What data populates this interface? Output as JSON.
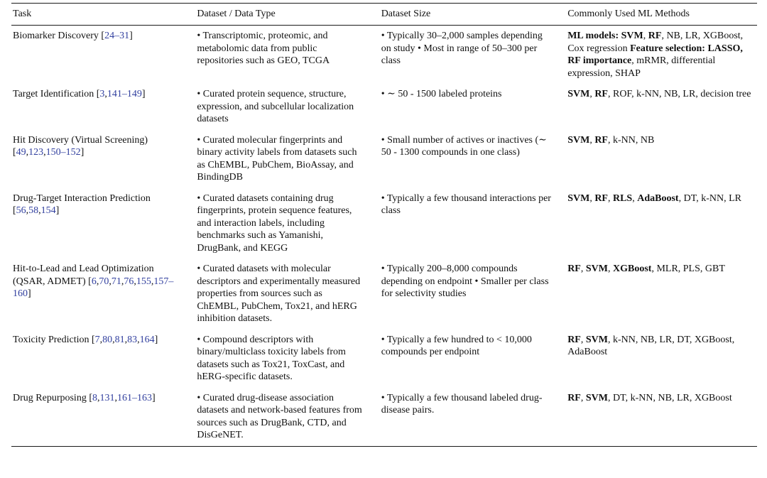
{
  "colors": {
    "citation": "#32409f",
    "text": "#111111",
    "rule": "#1a1a1a",
    "background": "#ffffff"
  },
  "table": {
    "columns": [
      "Task",
      "Dataset / Data Type",
      "Dataset Size",
      "Commonly Used ML Methods"
    ],
    "rows": [
      {
        "task": [
          {
            "t": "Biomarker Discovery ["
          },
          {
            "t": "24–31",
            "cite": true
          },
          {
            "t": "]"
          }
        ],
        "dataset": [
          {
            "t": "• Transcriptomic, proteomic, and metabolomic data from public repositories such as GEO, TCGA"
          }
        ],
        "size": [
          {
            "t": "• Typically 30–2,000 samples depending on study • Most in range of 50–300 per class"
          }
        ],
        "methods": [
          {
            "t": "ML models: ",
            "b": true
          },
          {
            "t": "SVM",
            "b": true
          },
          {
            "t": ", "
          },
          {
            "t": "RF",
            "b": true
          },
          {
            "t": ", NB, LR, XGBoost, Cox regression "
          },
          {
            "t": "Feature selection: ",
            "b": true
          },
          {
            "t": "LASSO, RF importance",
            "b": true
          },
          {
            "t": ", mRMR, differential expression, SHAP"
          }
        ]
      },
      {
        "task": [
          {
            "t": "Target Identification ["
          },
          {
            "t": "3",
            "cite": true
          },
          {
            "t": ","
          },
          {
            "t": "141–149",
            "cite": true
          },
          {
            "t": "]"
          }
        ],
        "dataset": [
          {
            "t": "• Curated protein sequence, structure, expression, and subcellular localization datasets"
          }
        ],
        "size": [
          {
            "t": "• ∼ 50 - 1500 labeled proteins"
          }
        ],
        "methods": [
          {
            "t": "SVM",
            "b": true
          },
          {
            "t": ", "
          },
          {
            "t": "RF",
            "b": true
          },
          {
            "t": ", ROF, k-NN, NB, LR, decision tree"
          }
        ]
      },
      {
        "task": [
          {
            "t": "Hit Discovery (Virtual Screening) ["
          },
          {
            "t": "49",
            "cite": true
          },
          {
            "t": ","
          },
          {
            "t": "123",
            "cite": true
          },
          {
            "t": ","
          },
          {
            "t": "150–152",
            "cite": true
          },
          {
            "t": "]"
          }
        ],
        "dataset": [
          {
            "t": "• Curated molecular fingerprints and binary activity labels from datasets such as ChEMBL, PubChem, BioAssay, and BindingDB"
          }
        ],
        "size": [
          {
            "t": "• Small number of actives or inactives (∼ 50 - 1300 compounds in one class)"
          }
        ],
        "methods": [
          {
            "t": "SVM",
            "b": true
          },
          {
            "t": ", "
          },
          {
            "t": "RF",
            "b": true
          },
          {
            "t": ", k-NN, NB"
          }
        ]
      },
      {
        "task": [
          {
            "t": "Drug-Target Interaction Prediction ["
          },
          {
            "t": "56",
            "cite": true
          },
          {
            "t": ","
          },
          {
            "t": "58",
            "cite": true
          },
          {
            "t": ","
          },
          {
            "t": "154",
            "cite": true
          },
          {
            "t": "]"
          }
        ],
        "dataset": [
          {
            "t": "• Curated datasets containing drug fingerprints, protein sequence features, and interaction labels, including benchmarks such as Yamanishi, DrugBank, and KEGG"
          }
        ],
        "size": [
          {
            "t": "• Typically a few thousand interactions per class"
          }
        ],
        "methods": [
          {
            "t": "SVM",
            "b": true
          },
          {
            "t": ", "
          },
          {
            "t": "RF",
            "b": true
          },
          {
            "t": ", "
          },
          {
            "t": "RLS",
            "b": true
          },
          {
            "t": ", "
          },
          {
            "t": "AdaBoost",
            "b": true
          },
          {
            "t": ", DT, k-NN, LR"
          }
        ]
      },
      {
        "task": [
          {
            "t": "Hit-to-Lead and Lead Optimization (QSAR, ADMET) ["
          },
          {
            "t": "6",
            "cite": true
          },
          {
            "t": ","
          },
          {
            "t": "70",
            "cite": true
          },
          {
            "t": ","
          },
          {
            "t": "71",
            "cite": true
          },
          {
            "t": ","
          },
          {
            "t": "76",
            "cite": true
          },
          {
            "t": ","
          },
          {
            "t": "155",
            "cite": true
          },
          {
            "t": ","
          },
          {
            "t": "157–160",
            "cite": true
          },
          {
            "t": "]"
          }
        ],
        "dataset": [
          {
            "t": "• Curated datasets with molecular descriptors and experimentally measured properties from sources such as ChEMBL, PubChem, Tox21, and hERG inhibition datasets."
          }
        ],
        "size": [
          {
            "t": "• Typically 200–8,000 compounds depending on endpoint • Smaller per class for selectivity studies"
          }
        ],
        "methods": [
          {
            "t": "RF",
            "b": true
          },
          {
            "t": ", "
          },
          {
            "t": "SVM",
            "b": true
          },
          {
            "t": ", "
          },
          {
            "t": "XGBoost",
            "b": true
          },
          {
            "t": ", MLR, PLS, GBT"
          }
        ]
      },
      {
        "task": [
          {
            "t": "Toxicity Prediction ["
          },
          {
            "t": "7",
            "cite": true
          },
          {
            "t": ","
          },
          {
            "t": "80",
            "cite": true
          },
          {
            "t": ","
          },
          {
            "t": "81",
            "cite": true
          },
          {
            "t": ","
          },
          {
            "t": "83",
            "cite": true
          },
          {
            "t": ","
          },
          {
            "t": "164",
            "cite": true
          },
          {
            "t": "]"
          }
        ],
        "dataset": [
          {
            "t": "• Compound descriptors with binary/multiclass toxicity labels from datasets such as Tox21, ToxCast, and hERG-specific datasets."
          }
        ],
        "size": [
          {
            "t": "• Typically a few hundred to < 10,000 compounds per endpoint"
          }
        ],
        "methods": [
          {
            "t": "RF",
            "b": true
          },
          {
            "t": ", "
          },
          {
            "t": "SVM",
            "b": true
          },
          {
            "t": ", k-NN, NB, LR, DT, XGBoost, AdaBoost"
          }
        ]
      },
      {
        "task": [
          {
            "t": "Drug Repurposing ["
          },
          {
            "t": "8",
            "cite": true
          },
          {
            "t": ","
          },
          {
            "t": "131",
            "cite": true
          },
          {
            "t": ","
          },
          {
            "t": "161–163",
            "cite": true
          },
          {
            "t": "]"
          }
        ],
        "dataset": [
          {
            "t": "• Curated drug-disease association datasets and network-based features from sources such as DrugBank, CTD, and DisGeNET."
          }
        ],
        "size": [
          {
            "t": "• Typically a few thousand labeled drug-disease pairs."
          }
        ],
        "methods": [
          {
            "t": "RF",
            "b": true
          },
          {
            "t": ", "
          },
          {
            "t": "SVM",
            "b": true
          },
          {
            "t": ", DT, k-NN, NB, LR, XGBoost"
          }
        ]
      }
    ]
  }
}
